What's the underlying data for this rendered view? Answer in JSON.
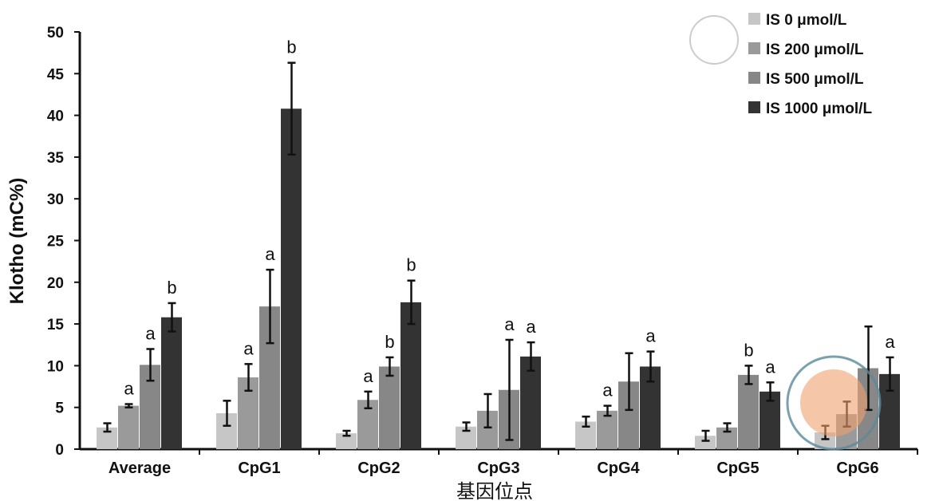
{
  "chart_data": {
    "type": "bar",
    "title": "",
    "xlabel": "基因位点",
    "ylabel": "Klotho (mC%)",
    "ylim": [
      0,
      50
    ],
    "yticks": [
      0,
      5,
      10,
      15,
      20,
      25,
      30,
      35,
      40,
      45,
      50
    ],
    "grid": false,
    "legend_position": "top-right",
    "categories": [
      "Average",
      "CpG1",
      "CpG2",
      "CpG3",
      "CpG4",
      "CpG5",
      "CpG6"
    ],
    "series": [
      {
        "name": "IS 0 μmol/L",
        "color": "#c6c6c6",
        "values": [
          2.6,
          4.3,
          1.9,
          2.7,
          3.3,
          1.6,
          2.0
        ],
        "errors": [
          0.5,
          1.5,
          0.3,
          0.5,
          0.6,
          0.6,
          0.8
        ],
        "labels": [
          "",
          "",
          "",
          "",
          "",
          "",
          ""
        ]
      },
      {
        "name": "IS 200 μmol/L",
        "color": "#9a9a9a",
        "values": [
          5.2,
          8.6,
          5.9,
          4.6,
          4.6,
          2.6,
          4.2
        ],
        "errors": [
          0.2,
          1.6,
          1.0,
          2.0,
          0.6,
          0.5,
          1.5
        ],
        "labels": [
          "a",
          "a",
          "a",
          "",
          "a",
          "",
          ""
        ]
      },
      {
        "name": "IS 500 μmol/L",
        "color": "#878787",
        "values": [
          10.1,
          17.1,
          9.9,
          7.1,
          8.1,
          8.9,
          9.7
        ],
        "errors": [
          1.9,
          4.4,
          1.1,
          6.0,
          3.4,
          1.1,
          5.0
        ],
        "labels": [
          "a",
          "a",
          "b",
          "a",
          "",
          "b",
          ""
        ]
      },
      {
        "name": "IS 1000 μmol/L",
        "color": "#333333",
        "values": [
          15.8,
          40.8,
          17.6,
          11.1,
          9.9,
          6.9,
          9.0
        ],
        "errors": [
          1.7,
          5.5,
          2.6,
          1.7,
          1.8,
          1.1,
          2.0
        ],
        "labels": [
          "b",
          "b",
          "b",
          "a",
          "a",
          "a",
          "a"
        ]
      }
    ]
  }
}
